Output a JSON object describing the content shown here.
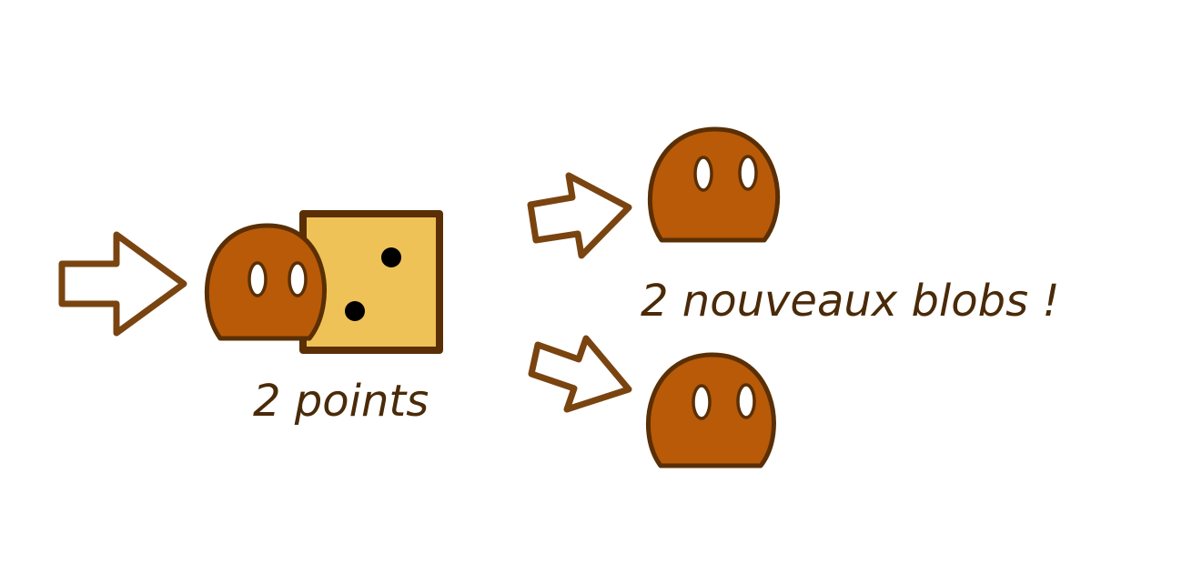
{
  "colors": {
    "outline": "#5a2f05",
    "arrow_stroke": "#7a4410",
    "blob_fill": "#b85a08",
    "eye_fill": "#ffffff",
    "die_fill": "#efc258",
    "pip_fill": "#000000",
    "text": "#4a2a08"
  },
  "icons": {
    "input_arrow": "arrow-right-icon",
    "blob": "blob-icon",
    "die": "die-two-icon",
    "output_arrows": "arrow-right-icon"
  },
  "die": {
    "face_value": 2
  },
  "labels": {
    "die_roll": "2 points",
    "result": "2 nouveaux blobs !"
  },
  "output": {
    "new_blob_count": 2
  }
}
